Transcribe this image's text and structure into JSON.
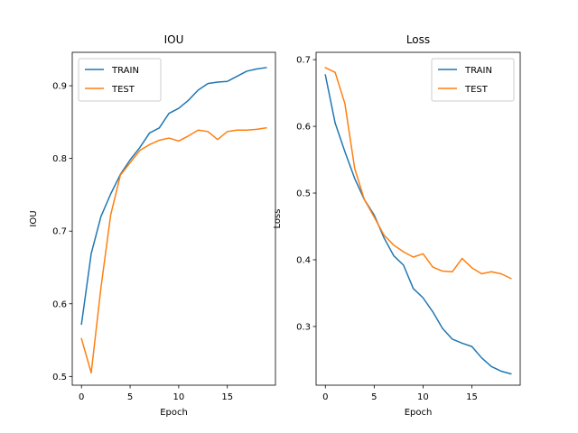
{
  "chart_data": [
    {
      "type": "line",
      "title": "IOU",
      "xlabel": "Epoch",
      "ylabel": "IOU",
      "x": [
        0,
        1,
        2,
        3,
        4,
        5,
        6,
        7,
        8,
        9,
        10,
        11,
        12,
        13,
        14,
        15,
        16,
        17,
        18,
        19
      ],
      "xlim": [
        -0.95,
        19.95
      ],
      "ylim": [
        0.488,
        0.946
      ],
      "xticks": [
        0,
        5,
        10,
        15
      ],
      "yticks": [
        0.5,
        0.6,
        0.7,
        0.8,
        0.9
      ],
      "ytick_labels": [
        "0.5",
        "0.6",
        "0.7",
        "0.8",
        "0.9"
      ],
      "legend_position": "top-left",
      "series": [
        {
          "name": "TRAIN",
          "color": "#1f77b4",
          "values": [
            0.572,
            0.669,
            0.72,
            0.751,
            0.778,
            0.798,
            0.815,
            0.835,
            0.842,
            0.862,
            0.869,
            0.88,
            0.894,
            0.903,
            0.905,
            0.906,
            0.913,
            0.92,
            0.923,
            0.925
          ]
        },
        {
          "name": "TEST",
          "color": "#ff7f0e",
          "values": [
            0.552,
            0.505,
            0.622,
            0.722,
            0.777,
            0.794,
            0.811,
            0.819,
            0.825,
            0.828,
            0.824,
            0.831,
            0.839,
            0.837,
            0.826,
            0.837,
            0.839,
            0.839,
            0.84,
            0.842
          ]
        }
      ]
    },
    {
      "type": "line",
      "title": "Loss",
      "xlabel": "Epoch",
      "ylabel": "Loss",
      "x": [
        0,
        1,
        2,
        3,
        4,
        5,
        6,
        7,
        8,
        9,
        10,
        11,
        12,
        13,
        14,
        15,
        16,
        17,
        18,
        19
      ],
      "xlim": [
        -0.95,
        19.95
      ],
      "ylim": [
        0.212,
        0.711
      ],
      "xticks": [
        0,
        5,
        10,
        15
      ],
      "yticks": [
        0.3,
        0.4,
        0.5,
        0.6,
        0.7
      ],
      "ytick_labels": [
        "0.3",
        "0.4",
        "0.5",
        "0.6",
        "0.7"
      ],
      "legend_position": "top-right",
      "series": [
        {
          "name": "TRAIN",
          "color": "#1f77b4",
          "values": [
            0.677,
            0.605,
            0.562,
            0.522,
            0.49,
            0.467,
            0.433,
            0.406,
            0.392,
            0.357,
            0.343,
            0.322,
            0.297,
            0.281,
            0.275,
            0.27,
            0.253,
            0.24,
            0.233,
            0.229
          ]
        },
        {
          "name": "TEST",
          "color": "#ff7f0e",
          "values": [
            0.688,
            0.681,
            0.634,
            0.537,
            0.49,
            0.464,
            0.437,
            0.422,
            0.412,
            0.404,
            0.409,
            0.389,
            0.383,
            0.382,
            0.402,
            0.388,
            0.379,
            0.382,
            0.379,
            0.372
          ]
        }
      ]
    }
  ]
}
